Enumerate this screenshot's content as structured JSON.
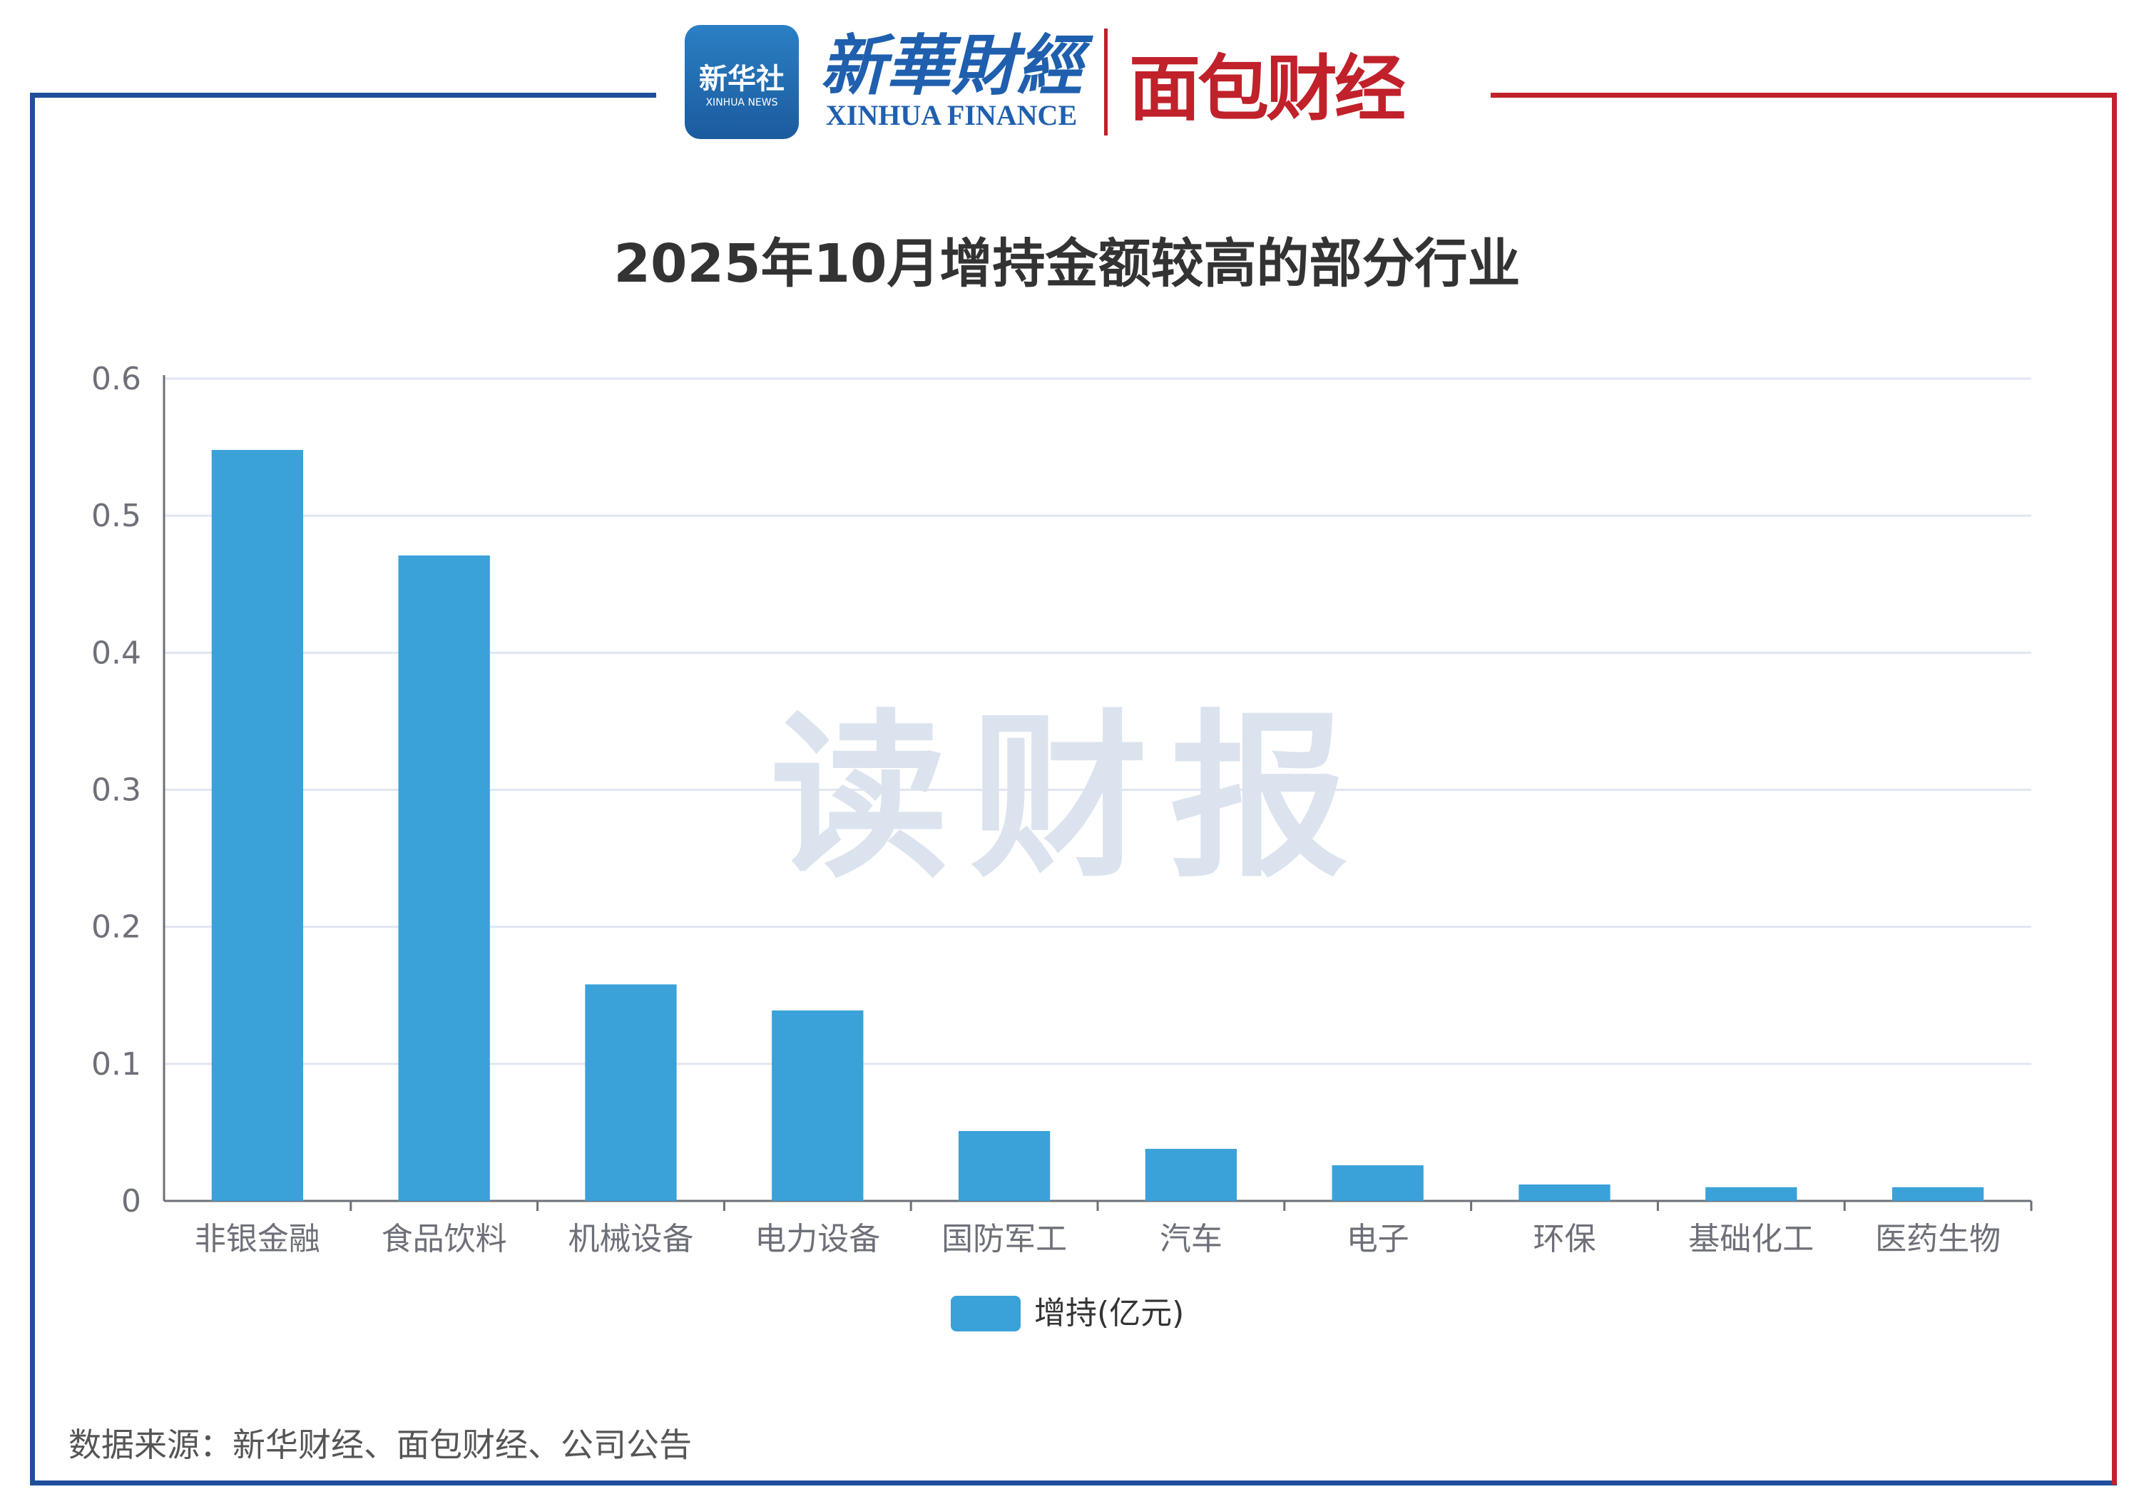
{
  "logos": {
    "xinhua_news": "新华社",
    "xinhua_news_en": "XINHUA NEWS",
    "xinhua_finance": "新華財經",
    "xinhua_finance_en": "XINHUA FINANCE",
    "mianbao": "面包财经"
  },
  "watermark": "读财报",
  "source": "数据来源：新华财经、面包财经、公司公告",
  "colors": {
    "bar": "#3aa1d9",
    "frame_left": "#1f4e9c",
    "frame_right": "#c0212a"
  },
  "chart_data": {
    "type": "bar",
    "title": "2025年10月增持金额较高的部分行业",
    "categories": [
      "非银金融",
      "食品饮料",
      "机械设备",
      "电力设备",
      "国防军工",
      "汽车",
      "电子",
      "环保",
      "基础化工",
      "医药生物"
    ],
    "series": [
      {
        "name": "增持(亿元)",
        "values": [
          0.548,
          0.471,
          0.158,
          0.139,
          0.051,
          0.038,
          0.026,
          0.012,
          0.01,
          0.01
        ]
      }
    ],
    "ylim": [
      0,
      0.6
    ],
    "yticks": [
      "0",
      "0.1",
      "0.2",
      "0.3",
      "0.4",
      "0.5",
      "0.6"
    ],
    "grid": true,
    "legend": "bottom"
  }
}
